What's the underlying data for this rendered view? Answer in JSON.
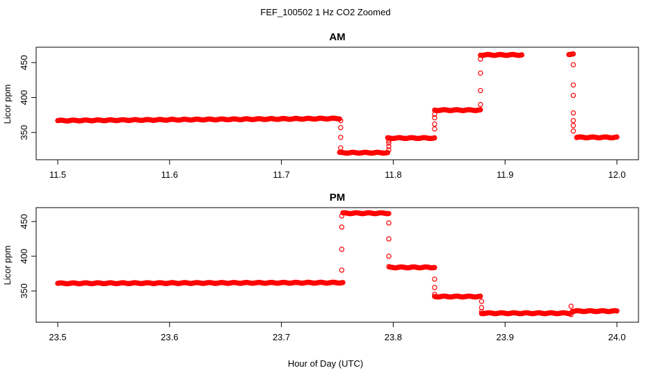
{
  "figure": {
    "title": "FEF_100502  1 Hz CO2 Zoomed",
    "xlabel": "Hour of Day (UTC)"
  },
  "chart_data": [
    {
      "type": "scatter",
      "title": "AM",
      "xlabel": "",
      "ylabel": "Licor ppm",
      "xlim": [
        11.5,
        12.0
      ],
      "ylim": [
        311,
        472
      ],
      "xticks": [
        11.5,
        11.6,
        11.7,
        11.8,
        11.9,
        12.0
      ],
      "xtick_labels": [
        "11.5",
        "11.6",
        "11.7",
        "11.8",
        "11.9",
        "12.0"
      ],
      "yticks": [
        350,
        400,
        450
      ],
      "ytick_labels": [
        "350",
        "400",
        "450"
      ],
      "marker": "open-circle",
      "color": "#ff0000",
      "grid": false,
      "legend": "none",
      "segments": [
        {
          "x": [
            11.5,
            11.752
          ],
          "y": [
            367,
            370
          ]
        },
        {
          "x": [
            11.752,
            11.795
          ],
          "y": [
            321,
            321
          ]
        },
        {
          "x": [
            11.795,
            11.837
          ],
          "y": [
            342,
            342
          ]
        },
        {
          "x": [
            11.837,
            11.878
          ],
          "y": [
            382,
            382
          ]
        },
        {
          "x": [
            11.878,
            11.915
          ],
          "y": [
            461,
            461
          ]
        },
        {
          "x": [
            11.957,
            11.961
          ],
          "y": [
            462,
            462
          ]
        },
        {
          "x": [
            11.964,
            12.0
          ],
          "y": [
            343,
            343
          ]
        }
      ],
      "transitions": [
        {
          "x": 11.753,
          "y": [
            367,
            357,
            343,
            328
          ]
        },
        {
          "x": 11.796,
          "y": [
            325,
            330,
            335,
            338
          ]
        },
        {
          "x": 11.837,
          "y": [
            355,
            362,
            371,
            376
          ]
        },
        {
          "x": 11.878,
          "y": [
            390,
            410,
            435,
            455
          ]
        },
        {
          "x": 11.961,
          "y": [
            447,
            418,
            403,
            378,
            367,
            360,
            352
          ]
        }
      ]
    },
    {
      "type": "scatter",
      "title": "PM",
      "xlabel": "",
      "ylabel": "Licor ppm",
      "xlim": [
        23.5,
        24.0
      ],
      "ylim": [
        305,
        470
      ],
      "xticks": [
        23.5,
        23.6,
        23.7,
        23.8,
        23.9,
        24.0
      ],
      "xtick_labels": [
        "23.5",
        "23.6",
        "23.7",
        "23.8",
        "23.9",
        "24.0"
      ],
      "yticks": [
        350,
        400,
        450
      ],
      "ytick_labels": [
        "350",
        "400",
        "450"
      ],
      "marker": "open-circle",
      "color": "#ff0000",
      "grid": false,
      "legend": "none",
      "segments": [
        {
          "x": [
            23.5,
            23.755
          ],
          "y": [
            361,
            362
          ]
        },
        {
          "x": [
            23.755,
            23.796
          ],
          "y": [
            462,
            462
          ]
        },
        {
          "x": [
            23.797,
            23.837
          ],
          "y": [
            384,
            384
          ]
        },
        {
          "x": [
            23.837,
            23.878
          ],
          "y": [
            342,
            342
          ]
        },
        {
          "x": [
            23.879,
            23.958
          ],
          "y": [
            318,
            318
          ]
        },
        {
          "x": [
            23.96,
            24.0
          ],
          "y": [
            321,
            321
          ]
        }
      ],
      "transitions": [
        {
          "x": 23.754,
          "y": [
            380,
            410,
            442,
            458
          ]
        },
        {
          "x": 23.796,
          "y": [
            448,
            425,
            400,
            385
          ]
        },
        {
          "x": 23.837,
          "y": [
            367,
            355,
            345
          ]
        },
        {
          "x": 23.879,
          "y": [
            335,
            326,
            320
          ]
        },
        {
          "x": 23.959,
          "y": [
            316,
            328
          ]
        }
      ]
    }
  ]
}
